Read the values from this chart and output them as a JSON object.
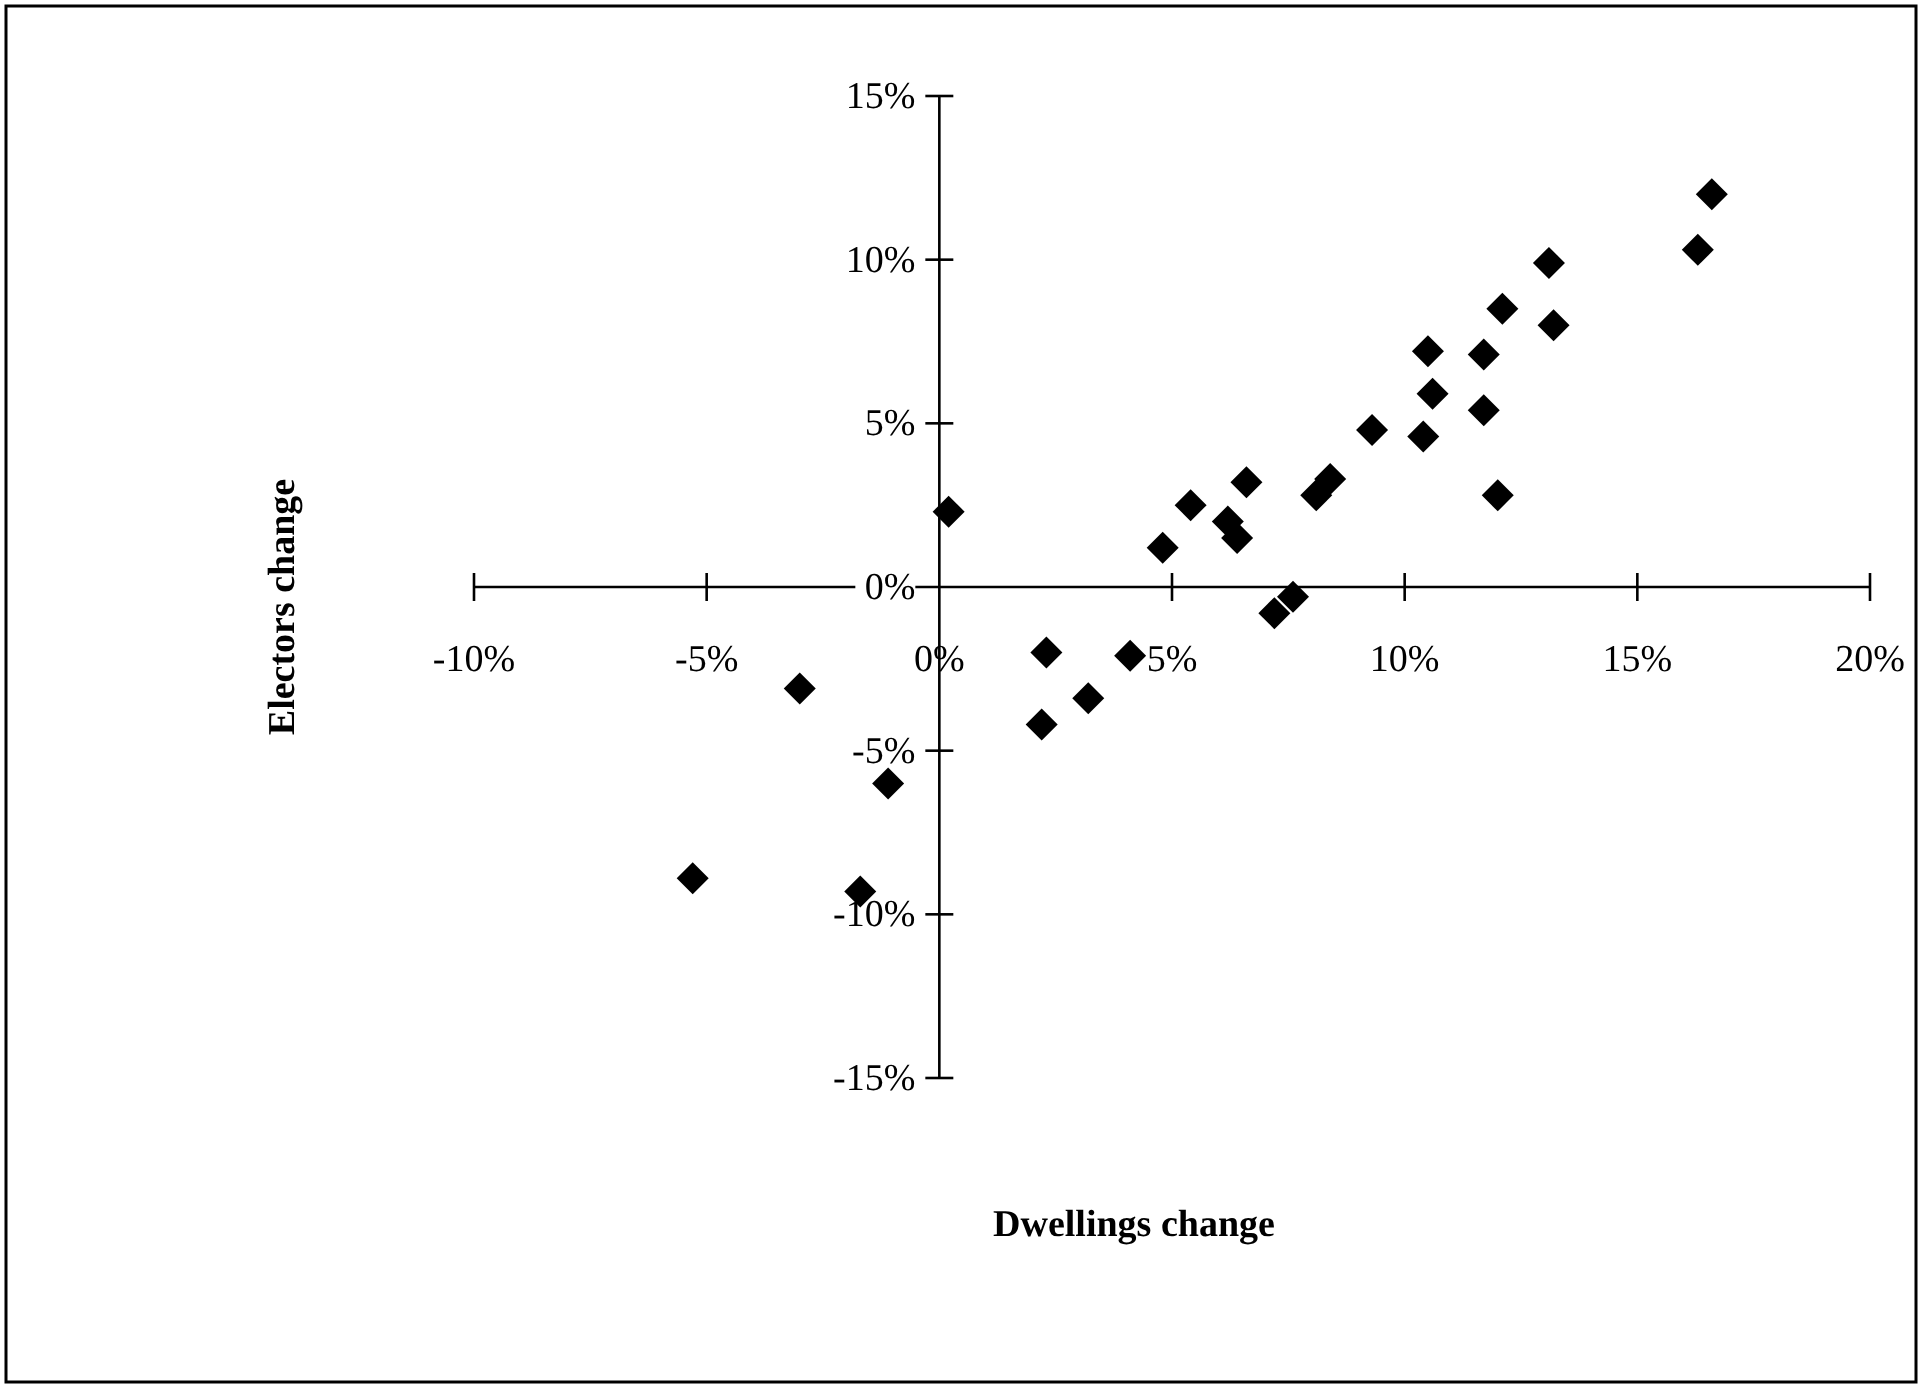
{
  "chart_data": {
    "type": "scatter",
    "xlabel": "Dwellings change",
    "ylabel": "Electors change",
    "marker": "diamond",
    "xlim": [
      -10,
      20
    ],
    "ylim": [
      -15,
      15
    ],
    "xticks": [
      {
        "value": -10,
        "label": "-10%"
      },
      {
        "value": -5,
        "label": "-5%"
      },
      {
        "value": 0,
        "label": "0%"
      },
      {
        "value": 5,
        "label": "5%"
      },
      {
        "value": 10,
        "label": "10%"
      },
      {
        "value": 15,
        "label": "15%"
      },
      {
        "value": 20,
        "label": "20%"
      }
    ],
    "yticks": [
      {
        "value": -15,
        "label": "-15%"
      },
      {
        "value": -10,
        "label": "-10%"
      },
      {
        "value": -5,
        "label": "-5%"
      },
      {
        "value": 0,
        "label": "0%"
      },
      {
        "value": 5,
        "label": "5%"
      },
      {
        "value": 10,
        "label": "10%"
      },
      {
        "value": 15,
        "label": "15%"
      }
    ],
    "series": [
      {
        "color": "#000000",
        "x": [
          0.2,
          4.8,
          5.4,
          6.2,
          6.4,
          6.6,
          8.1,
          8.4,
          7.2,
          7.6,
          9.3,
          10.4,
          10.5,
          10.6,
          11.7,
          11.7,
          12.0,
          12.1,
          13.1,
          13.2,
          16.3,
          16.6,
          2.3,
          4.1,
          3.2,
          2.2,
          -3.0,
          -1.1,
          -5.3,
          -1.7
        ],
        "values": [
          2.3,
          1.2,
          2.5,
          2.0,
          1.5,
          3.2,
          2.8,
          3.3,
          -0.8,
          -0.3,
          4.8,
          4.6,
          7.2,
          5.9,
          7.1,
          5.4,
          2.8,
          8.5,
          9.9,
          8.0,
          10.3,
          12.0,
          -2.0,
          -2.1,
          -3.4,
          -4.2,
          -3.1,
          -6.0,
          -8.9,
          -9.3
        ]
      }
    ]
  }
}
